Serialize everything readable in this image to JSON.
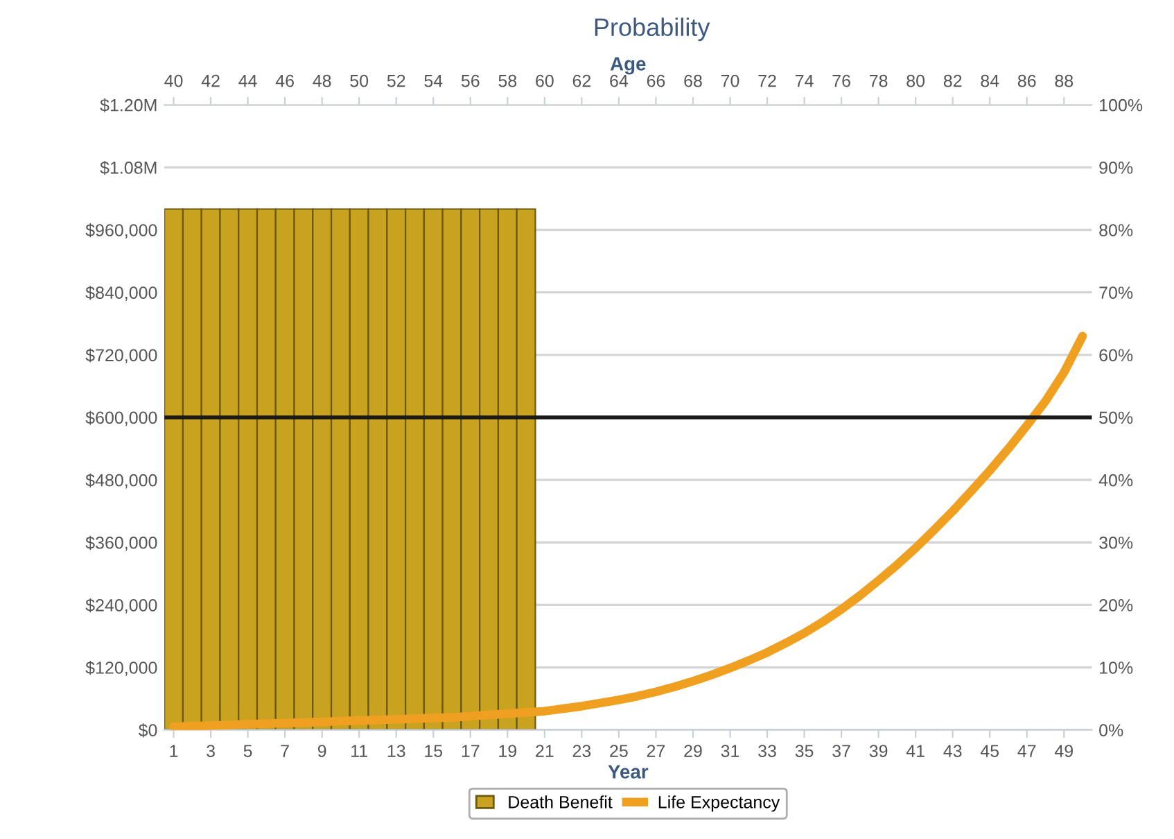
{
  "chart_data": {
    "type": "bar",
    "title": "Probability",
    "xlabel": "Year",
    "x2label": "Age",
    "xlim": [
      0.5,
      50.5
    ],
    "xticks": [
      1,
      3,
      5,
      7,
      9,
      11,
      13,
      15,
      17,
      19,
      21,
      23,
      25,
      27,
      29,
      31,
      33,
      35,
      37,
      39,
      41,
      43,
      45,
      47,
      49
    ],
    "x2lim": [
      39.5,
      89.5
    ],
    "x2ticks": [
      40,
      42,
      44,
      46,
      48,
      50,
      52,
      54,
      56,
      58,
      60,
      62,
      64,
      66,
      68,
      70,
      72,
      74,
      76,
      78,
      80,
      82,
      84,
      86,
      88
    ],
    "ylim": [
      0,
      1200000
    ],
    "yticks": [
      {
        "value": 0,
        "label": "$0"
      },
      {
        "value": 120000,
        "label": "$120,000"
      },
      {
        "value": 240000,
        "label": "$240,000"
      },
      {
        "value": 360000,
        "label": "$360,000"
      },
      {
        "value": 480000,
        "label": "$480,000"
      },
      {
        "value": 600000,
        "label": "$600,000"
      },
      {
        "value": 720000,
        "label": "$720,000"
      },
      {
        "value": 840000,
        "label": "$840,000"
      },
      {
        "value": 960000,
        "label": "$960,000"
      },
      {
        "value": 1080000,
        "label": "$1.08M"
      },
      {
        "value": 1200000,
        "label": "$1.20M"
      }
    ],
    "y2lim": [
      0,
      100
    ],
    "y2ticks": [
      {
        "value": 0,
        "label": "0%"
      },
      {
        "value": 10,
        "label": "10%"
      },
      {
        "value": 20,
        "label": "20%"
      },
      {
        "value": 30,
        "label": "30%"
      },
      {
        "value": 40,
        "label": "40%"
      },
      {
        "value": 50,
        "label": "50%"
      },
      {
        "value": 60,
        "label": "60%"
      },
      {
        "value": 70,
        "label": "70%"
      },
      {
        "value": 80,
        "label": "80%"
      },
      {
        "value": 90,
        "label": "90%"
      },
      {
        "value": 100,
        "label": "100%"
      }
    ],
    "grid": "y",
    "legend": "bottom",
    "ref_lines": [
      {
        "axis": "y2",
        "value": 50,
        "color": "#1a1a1a"
      }
    ],
    "series": [
      {
        "name": "Death Benefit",
        "color": "#c9a21f",
        "x": [
          1,
          2,
          3,
          4,
          5,
          6,
          7,
          8,
          9,
          10,
          11,
          12,
          13,
          14,
          15,
          16,
          17,
          18,
          19,
          20
        ],
        "values": [
          1000000,
          1000000,
          1000000,
          1000000,
          1000000,
          1000000,
          1000000,
          1000000,
          1000000,
          1000000,
          1000000,
          1000000,
          1000000,
          1000000,
          1000000,
          1000000,
          1000000,
          1000000,
          1000000,
          1000000
        ]
      },
      {
        "name": "Life Expectancy",
        "type": "line",
        "axis": "y2",
        "color": "#f0a020",
        "x": [
          1,
          2,
          3,
          4,
          5,
          6,
          7,
          8,
          9,
          10,
          11,
          12,
          13,
          14,
          15,
          16,
          17,
          18,
          19,
          20,
          21,
          22,
          23,
          24,
          25,
          26,
          27,
          28,
          29,
          30,
          31,
          32,
          33,
          34,
          35,
          36,
          37,
          38,
          39,
          40,
          41,
          42,
          43,
          44,
          45,
          46,
          47,
          48,
          49,
          50
        ],
        "values": [
          0.5,
          0.6,
          0.7,
          0.8,
          0.9,
          1.0,
          1.1,
          1.2,
          1.3,
          1.4,
          1.5,
          1.6,
          1.7,
          1.8,
          1.9,
          2.0,
          2.2,
          2.4,
          2.6,
          2.8,
          3.0,
          3.4,
          3.8,
          4.3,
          4.8,
          5.4,
          6.1,
          6.9,
          7.8,
          8.8,
          9.9,
          11.1,
          12.4,
          13.9,
          15.5,
          17.3,
          19.3,
          21.5,
          23.9,
          26.4,
          29.1,
          32,
          35,
          38.2,
          41.5,
          45,
          48.7,
          52.6,
          57.2,
          63
        ]
      }
    ]
  }
}
